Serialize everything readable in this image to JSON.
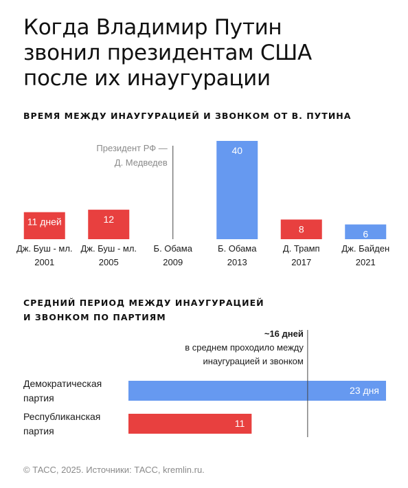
{
  "title_lines": [
    "Когда Владимир Путин",
    "звонил президентам США",
    "после их инаугурации"
  ],
  "colors": {
    "republican": "#e8403f",
    "democratic": "#6699f0",
    "text": "#1a1a1a",
    "muted": "#8a8a8a"
  },
  "chart_data": [
    {
      "type": "bar",
      "title": "ВРЕМЯ МЕЖДУ ИНАУГУРАЦИЕЙ И ЗВОНКОМ ОТ В. ПУТИНА",
      "categories": [
        {
          "name": "Дж. Буш - мл.",
          "year": "2001"
        },
        {
          "name": "Дж. Буш - мл.",
          "year": "2005"
        },
        {
          "name": "Б. Обама",
          "year": "2009"
        },
        {
          "name": "Б. Обама",
          "year": "2013"
        },
        {
          "name": "Д. Трамп",
          "year": "2017"
        },
        {
          "name": "Дж. Байден",
          "year": "2021"
        }
      ],
      "values": [
        11,
        12,
        null,
        40,
        8,
        6
      ],
      "value_labels": [
        "11 дней",
        "12",
        "",
        "40",
        "8",
        "6"
      ],
      "party": [
        "republican",
        "republican",
        "democratic",
        "democratic",
        "republican",
        "democratic"
      ],
      "ylim": [
        0,
        40
      ],
      "annotation_lines": [
        "Президент РФ —",
        "Д. Медведев"
      ]
    },
    {
      "type": "bar",
      "orientation": "horizontal",
      "title_lines": [
        "СРЕДНИЙ ПЕРИОД МЕЖДУ ИНАУГУРАЦИЕЙ",
        "И ЗВОНКОМ ПО ПАРТИЯМ"
      ],
      "categories": [
        {
          "lines": [
            "Демократическая",
            "партия"
          ],
          "party": "democratic"
        },
        {
          "lines": [
            "Республиканская",
            "партия"
          ],
          "party": "republican"
        }
      ],
      "values": [
        23,
        11
      ],
      "value_labels": [
        "23 дня",
        "11"
      ],
      "xlim": [
        0,
        23
      ],
      "average": {
        "value": 16,
        "label": "~16 дней",
        "note_lines": [
          "в среднем проходило между",
          "инаугурацией и звонком"
        ]
      }
    }
  ],
  "footer": "© ТАСС, 2025. Источники: ТАСС, kremlin.ru."
}
